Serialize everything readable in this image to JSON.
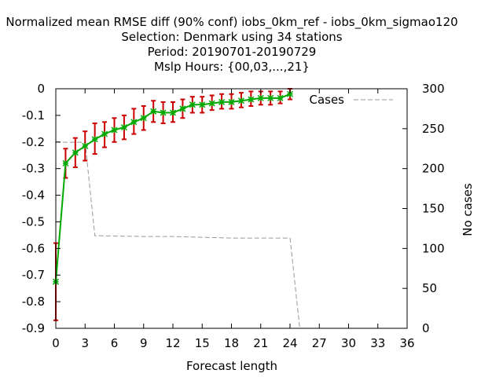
{
  "chart_data": {
    "type": "line",
    "title_lines": [
      "Normalized mean RMSE diff (90% conf) iobs_0km_ref - iobs_0km_sigmao120",
      "Selection: Denmark using    34 stations",
      "Period: 20190701-20190729",
      "Mslp   Hours: {00,03,...,21}"
    ],
    "xlabel": "Forecast length",
    "ylabel_right": "No cases",
    "xlim": [
      0,
      36
    ],
    "ylim": [
      -0.9,
      0
    ],
    "y2lim": [
      0,
      300
    ],
    "x_ticks": [
      0,
      3,
      6,
      9,
      12,
      15,
      18,
      21,
      24,
      27,
      30,
      33,
      36
    ],
    "y_ticks": [
      0,
      -0.1,
      -0.2,
      -0.3,
      -0.4,
      -0.5,
      -0.6,
      -0.7,
      -0.8,
      -0.9
    ],
    "y_tick_labels": [
      "0",
      "-0.1",
      "-0.2",
      "-0.3",
      "-0.4",
      "-0.5",
      "-0.6",
      "-0.7",
      "-0.8",
      "-0.9"
    ],
    "y2_ticks": [
      0,
      50,
      100,
      150,
      200,
      250,
      300
    ],
    "legend": {
      "label": "Cases",
      "position": "top-right"
    },
    "grid": false,
    "colors": {
      "diff_line": "#00aa00",
      "error_bars": "#cc0000",
      "cases_line": "#999999",
      "axes": "#000000"
    },
    "diff_series": {
      "x": [
        0,
        1,
        2,
        3,
        4,
        5,
        6,
        7,
        8,
        9,
        10,
        11,
        12,
        13,
        14,
        15,
        16,
        17,
        18,
        19,
        20,
        21,
        22,
        23,
        24
      ],
      "y": [
        -0.725,
        -0.28,
        -0.24,
        -0.215,
        -0.19,
        -0.17,
        -0.155,
        -0.145,
        -0.125,
        -0.11,
        -0.085,
        -0.09,
        -0.09,
        -0.075,
        -0.06,
        -0.06,
        -0.055,
        -0.05,
        -0.05,
        -0.045,
        -0.04,
        -0.035,
        -0.035,
        -0.035,
        -0.02
      ],
      "err_low": [
        -0.87,
        -0.335,
        -0.295,
        -0.27,
        -0.245,
        -0.22,
        -0.2,
        -0.19,
        -0.17,
        -0.155,
        -0.125,
        -0.13,
        -0.125,
        -0.11,
        -0.09,
        -0.09,
        -0.08,
        -0.075,
        -0.075,
        -0.07,
        -0.065,
        -0.06,
        -0.06,
        -0.055,
        -0.04
      ],
      "err_high": [
        -0.58,
        -0.225,
        -0.185,
        -0.16,
        -0.13,
        -0.125,
        -0.11,
        -0.1,
        -0.075,
        -0.065,
        -0.045,
        -0.05,
        -0.05,
        -0.04,
        -0.03,
        -0.03,
        -0.025,
        -0.02,
        -0.02,
        -0.015,
        -0.01,
        -0.01,
        -0.01,
        -0.01,
        0.0
      ]
    },
    "cases_series": {
      "name": "Cases",
      "x": [
        0,
        3,
        4,
        9,
        12,
        18,
        24,
        25,
        36
      ],
      "y": [
        233,
        233,
        116,
        115,
        115,
        113,
        113,
        0,
        0
      ]
    }
  }
}
